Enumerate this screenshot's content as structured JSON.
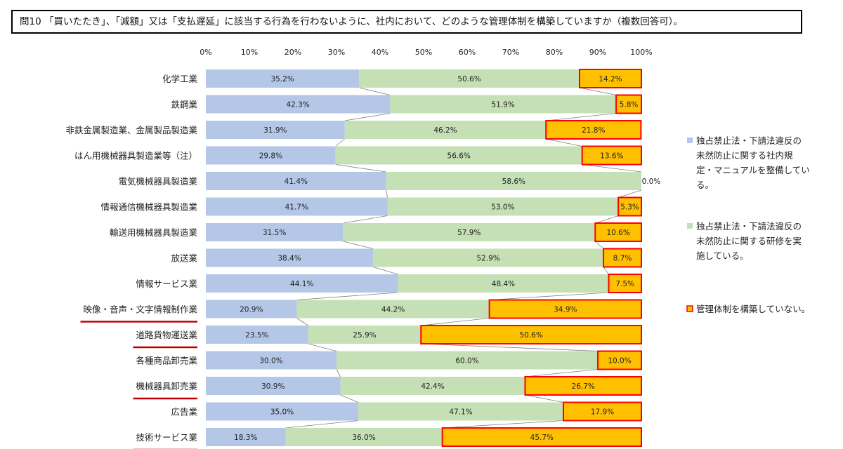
{
  "question": "問10 「買いたたき」、「減額」又は「支払遅延」に該当する行為を行わないように、社内において、どのような管理体制を構築していますか（複数回答可）。",
  "colors": {
    "series1": "#b4c7e7",
    "series2": "#c5e0b4",
    "series3": "#ffc000",
    "series3_border": "#ff0000",
    "connector": "#7f7f7f",
    "underline": "#c00000"
  },
  "chart_data": {
    "type": "bar",
    "orientation": "horizontal",
    "stacked": "percent",
    "xlim": [
      0,
      100
    ],
    "ticks": [
      "0%",
      "10%",
      "20%",
      "30%",
      "40%",
      "50%",
      "60%",
      "70%",
      "80%",
      "90%",
      "100%"
    ],
    "categories": [
      "化学工業",
      "鉄鋼業",
      "非鉄金属製造業、金属製品製造業",
      "はん用機械器具製造業等（注）",
      "電気機械器具製造業",
      "情報通信機械器具製造業",
      "輸送用機械器具製造業",
      "放送業",
      "情報サービス業",
      "映像・音声・文字情報制作業",
      "道路貨物運送業",
      "各種商品卸売業",
      "機械器具卸売業",
      "広告業",
      "技術サービス業"
    ],
    "underlined_categories": [
      "映像・音声・文字情報制作業",
      "道路貨物運送業",
      "機械器具卸売業",
      "技術サービス業"
    ],
    "series": [
      {
        "name": "独占禁止法・下請法違反の未然防止に関する社内規定・マニュアルを整備している。",
        "legend_lines": [
          "独占禁止法・下請法違反の",
          "未然防止に関する社内規",
          "定・マニュアルを整備してい",
          "る。"
        ],
        "values": [
          35.2,
          42.3,
          31.9,
          29.8,
          41.4,
          41.7,
          31.5,
          38.4,
          44.1,
          20.9,
          23.5,
          30.0,
          30.9,
          35.0,
          18.3
        ]
      },
      {
        "name": "独占禁止法・下請法違反の未然防止に関する研修を実施している。",
        "legend_lines": [
          "独占禁止法・下請法違反の",
          "未然防止に関する研修を実",
          "施している。"
        ],
        "values": [
          50.6,
          51.9,
          46.2,
          56.6,
          58.6,
          53.0,
          57.9,
          52.9,
          48.4,
          44.2,
          25.9,
          60.0,
          42.4,
          47.1,
          36.0
        ]
      },
      {
        "name": "管理体制を構築していない。",
        "legend_lines": [
          "管理体制を構築していない。"
        ],
        "values": [
          14.2,
          5.8,
          21.8,
          13.6,
          0.0,
          5.3,
          10.6,
          8.7,
          7.5,
          34.9,
          50.6,
          10.0,
          26.7,
          17.9,
          45.7
        ]
      }
    ],
    "data_labels": [
      [
        "35.2%",
        "42.3%",
        "31.9%",
        "29.8%",
        "41.4%",
        "41.7%",
        "31.5%",
        "38.4%",
        "44.1%",
        "20.9%",
        "23.5%",
        "30.0%",
        "30.9%",
        "35.0%",
        "18.3%"
      ],
      [
        "50.6%",
        "51.9%",
        "46.2%",
        "56.6%",
        "58.6%",
        "53.0%",
        "57.9%",
        "52.9%",
        "48.4%",
        "44.2%",
        "25.9%",
        "60.0%",
        "42.4%",
        "47.1%",
        "36.0%"
      ],
      [
        "14.2%",
        "5.8%",
        "21.8%",
        "13.6%",
        "0.0%",
        "5.3%",
        "10.6%",
        "8.7%",
        "7.5%",
        "34.9%",
        "50.6%",
        "10.0%",
        "26.7%",
        "17.9%",
        "45.7%"
      ]
    ],
    "legend_position": "right",
    "grid": false,
    "series_lines": true
  }
}
